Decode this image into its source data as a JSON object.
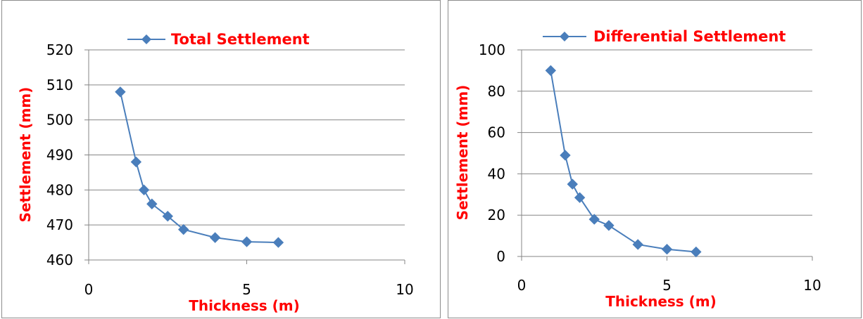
{
  "colors": {
    "series": "#4a7ebb",
    "axis_title": "#ff0000",
    "grid": "#868686"
  },
  "chart_data": [
    {
      "type": "line",
      "legend": "top",
      "grid": true,
      "xlabel": "Thickness (m)",
      "ylabel": "Settlement (mm)",
      "xlim": [
        0,
        10
      ],
      "ylim": [
        460,
        520
      ],
      "xticks": [
        0,
        5,
        10
      ],
      "yticks": [
        460,
        470,
        480,
        490,
        500,
        510,
        520
      ],
      "series": [
        {
          "name": "Total Settlement",
          "x": [
            1,
            1.5,
            1.75,
            2,
            2.5,
            3,
            4,
            5,
            6
          ],
          "y": [
            508,
            488,
            480,
            476,
            472.5,
            468.7,
            466.4,
            465.2,
            465
          ]
        }
      ]
    },
    {
      "type": "line",
      "legend": "top",
      "grid": true,
      "xlabel": "Thickness (m)",
      "ylabel": "Settlement (mm)",
      "xlim": [
        0,
        10
      ],
      "ylim": [
        0,
        100
      ],
      "xticks": [
        0,
        5,
        10
      ],
      "yticks": [
        0,
        20,
        40,
        60,
        80,
        100
      ],
      "series": [
        {
          "name": "Differential Settlement",
          "x": [
            1,
            1.5,
            1.75,
            2,
            2.5,
            3,
            4,
            5,
            6
          ],
          "y": [
            90,
            49,
            35,
            28.5,
            18,
            15,
            5.8,
            3.5,
            2.2
          ]
        }
      ]
    }
  ]
}
